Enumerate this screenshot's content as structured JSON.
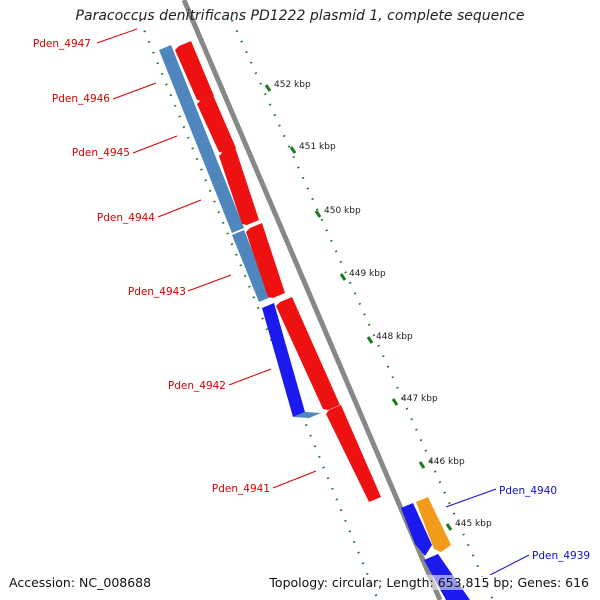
{
  "title": "Paracoccus denitrificans PD1222 plasmid 1, complete sequence",
  "footer": {
    "accession_label": "Accession:",
    "accession": "NC_008688",
    "topology_label": "Topology:",
    "topology": "circular;",
    "length_label": "Length:",
    "length": "653,815 bp;",
    "genes_label": "Genes:",
    "genes": "616"
  },
  "colors": {
    "forward_gene": "#ee1111",
    "reverse_gene_steel": "#4f86bd",
    "reverse_gene_blue": "#1a1aee",
    "orange_gene": "#f29a1a",
    "backbone": "#888888",
    "tick": "#1b7a1b",
    "label_red": "#d40000",
    "label_blue": "#1010cc"
  },
  "scale_ticks": [
    {
      "label": "452 kbp"
    },
    {
      "label": "451 kbp"
    },
    {
      "label": "450 kbp"
    },
    {
      "label": "449 kbp"
    },
    {
      "label": "448 kbp"
    },
    {
      "label": "447 kbp"
    },
    {
      "label": "446 kbp"
    },
    {
      "label": "445 kbp"
    }
  ],
  "gene_labels": [
    {
      "name": "Pden_4947",
      "color": "red"
    },
    {
      "name": "Pden_4946",
      "color": "red"
    },
    {
      "name": "Pden_4945",
      "color": "red"
    },
    {
      "name": "Pden_4944",
      "color": "red"
    },
    {
      "name": "Pden_4943",
      "color": "red"
    },
    {
      "name": "Pden_4942",
      "color": "red"
    },
    {
      "name": "Pden_4941",
      "color": "red"
    },
    {
      "name": "Pden_4940",
      "color": "blue"
    },
    {
      "name": "Pden_4939",
      "color": "blue"
    }
  ]
}
